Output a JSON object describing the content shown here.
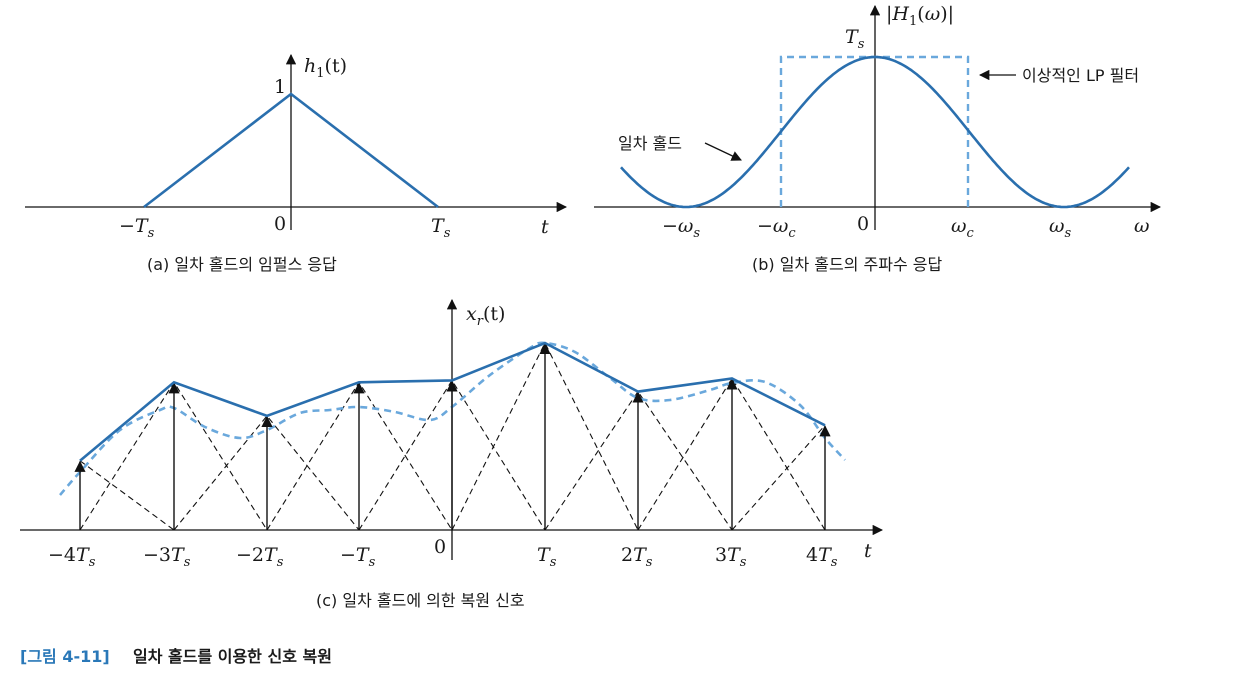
{
  "colors": {
    "curve": "#2a6fae",
    "dashed_curve": "#6aa8dc",
    "axis": "#111111",
    "figure_tag": "#2a78b8"
  },
  "panel_a": {
    "y_label": "h1(t)",
    "peak_label": "1",
    "tick_neg": "−Ts",
    "tick_zero": "0",
    "tick_pos": "Ts",
    "x_label": "t",
    "caption": "(a) 일차 홀드의 임펄스 응답"
  },
  "panel_b": {
    "y_label": "|H1(ω)|",
    "peak_label": "Ts",
    "ideal_filter_label": "이상적인 LP 필터",
    "first_order_hold_label": "일차 홀드",
    "tick_neg_s": "−ωs",
    "tick_neg_c": "−ωc",
    "tick_zero": "0",
    "tick_pos_c": "ωc",
    "tick_pos_s": "ωs",
    "x_label": "ω",
    "caption": "(b) 일차 홀드의 주파수 응답"
  },
  "panel_c": {
    "y_label": "xr(t)",
    "x_label": "t",
    "tick_labels": [
      "−4Ts",
      "−3Ts",
      "−2Ts",
      "−Ts",
      "0",
      "Ts",
      "2Ts",
      "3Ts",
      "4Ts"
    ],
    "sample_levels": [
      0.37,
      0.79,
      0.61,
      0.79,
      0.8,
      1.0,
      0.74,
      0.81,
      0.56
    ],
    "caption": "(c) 일차 홀드에 의한 복원 신호"
  },
  "figure": {
    "tag": "[그림 4-11]",
    "title": "일차 홀드를 이용한 신호 복원"
  }
}
